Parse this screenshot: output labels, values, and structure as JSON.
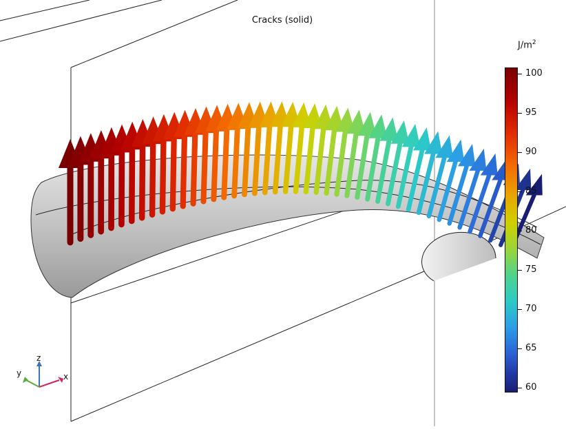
{
  "plot": {
    "title": "Cracks (solid)"
  },
  "colorbar": {
    "unit_base": "J/m",
    "unit_exp": "2",
    "ticks": [
      "100",
      "95",
      "90",
      "85",
      "80",
      "75",
      "70",
      "65",
      "60"
    ],
    "range": [
      59.5,
      101
    ]
  },
  "triad": {
    "x": "x",
    "y": "y",
    "z": "z"
  },
  "colors": {
    "high": "#7a0000",
    "low": "#181e72",
    "surface": "#c8c8c8"
  }
}
